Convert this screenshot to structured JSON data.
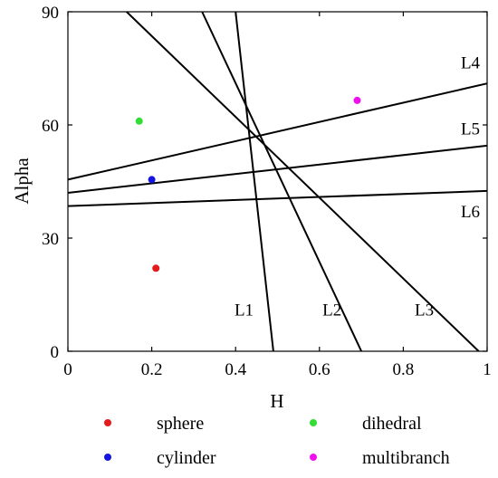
{
  "chart_data": {
    "type": "scatter",
    "xlabel": "H",
    "ylabel": "Alpha",
    "xlim": [
      0,
      1
    ],
    "ylim": [
      0,
      90
    ],
    "xticks": [
      0,
      0.2,
      0.4,
      0.6,
      0.8,
      1
    ],
    "xtick_labels": [
      "0",
      "0.2",
      "0.4",
      "0.6",
      "0.8",
      "1"
    ],
    "yticks": [
      0,
      30,
      60,
      90
    ],
    "ytick_labels": [
      "0",
      "30",
      "60",
      "90"
    ],
    "grid": false,
    "legend_position": "bottom",
    "series": [
      {
        "name": "sphere",
        "color": "#e41a1c",
        "points": [
          [
            0.21,
            22
          ]
        ]
      },
      {
        "name": "dihedral",
        "color": "#33dd33",
        "points": [
          [
            0.17,
            61
          ]
        ]
      },
      {
        "name": "cylinder",
        "color": "#1515e0",
        "points": [
          [
            0.2,
            45.5
          ]
        ]
      },
      {
        "name": "multibranch",
        "color": "#ee11ee",
        "points": [
          [
            0.69,
            66.5
          ]
        ]
      }
    ],
    "lines": [
      {
        "name": "L1",
        "color": "#000000",
        "points": [
          [
            0.4,
            90
          ],
          [
            0.49,
            0
          ]
        ],
        "label_pos": [
          0.42,
          9.5
        ]
      },
      {
        "name": "L2",
        "color": "#000000",
        "points": [
          [
            0.32,
            90
          ],
          [
            0.7,
            0
          ]
        ],
        "label_pos": [
          0.63,
          9.5
        ]
      },
      {
        "name": "L3",
        "color": "#000000",
        "points": [
          [
            0.14,
            90
          ],
          [
            0.98,
            0
          ]
        ],
        "label_pos": [
          0.85,
          9.5
        ]
      },
      {
        "name": "L4",
        "color": "#000000",
        "points": [
          [
            0,
            45.5
          ],
          [
            1,
            71
          ]
        ],
        "label_pos": [
          0.96,
          75
        ]
      },
      {
        "name": "L5",
        "color": "#000000",
        "points": [
          [
            0,
            42
          ],
          [
            1,
            54.5
          ]
        ],
        "label_pos": [
          0.96,
          57.5
        ]
      },
      {
        "name": "L6",
        "color": "#000000",
        "points": [
          [
            0,
            38.5
          ],
          [
            1,
            42.5
          ]
        ],
        "label_pos": [
          0.96,
          35.5
        ]
      }
    ]
  }
}
